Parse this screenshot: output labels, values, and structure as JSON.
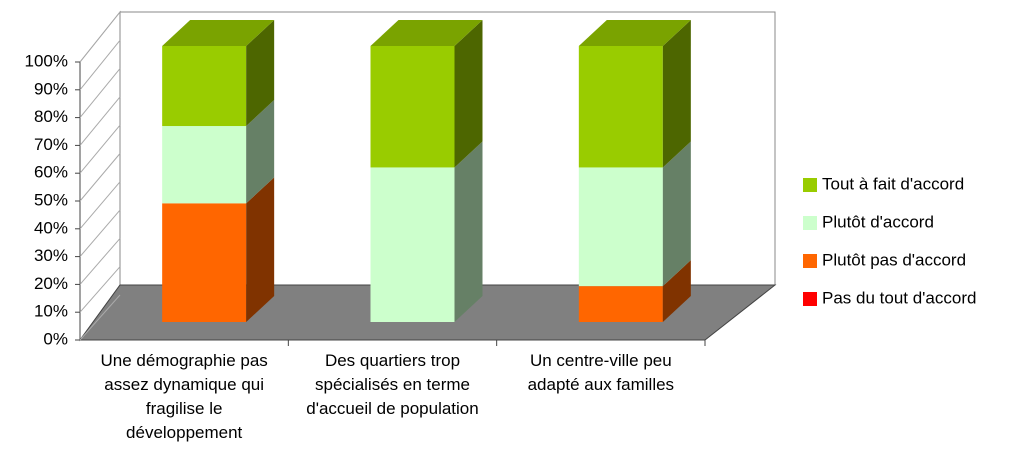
{
  "chart_data": {
    "type": "bar",
    "stacked": true,
    "categories": [
      "Une démographie pas\nassez dynamique qui\nfragilise le\ndéveloppement",
      "Des quartiers trop\nspécialisés en terme\nd'accueil de population",
      "Un centre-ville peu\nadapté aux familles"
    ],
    "series": [
      {
        "name": "Tout à fait d'accord",
        "color": "#99cc00",
        "values": [
          29,
          44,
          44
        ]
      },
      {
        "name": "Plutôt d'accord",
        "color": "#ccffcc",
        "values": [
          28,
          56,
          43
        ]
      },
      {
        "name": "Plutôt pas d'accord",
        "color": "#ff6600",
        "values": [
          43,
          0,
          13
        ]
      },
      {
        "name": "Pas du tout d'accord",
        "color": "#ff0000",
        "values": [
          0,
          0,
          0
        ]
      }
    ],
    "ylim": [
      0,
      100
    ],
    "yticks": [
      {
        "value": 0,
        "label": "0%"
      },
      {
        "value": 10,
        "label": "10%"
      },
      {
        "value": 20,
        "label": "20%"
      },
      {
        "value": 30,
        "label": "30%"
      },
      {
        "value": 40,
        "label": "40%"
      },
      {
        "value": 50,
        "label": "50%"
      },
      {
        "value": 60,
        "label": "60%"
      },
      {
        "value": 70,
        "label": "70%"
      },
      {
        "value": 80,
        "label": "80%"
      },
      {
        "value": 90,
        "label": "90%"
      },
      {
        "value": 100,
        "label": "100%"
      }
    ],
    "legend": "right"
  }
}
